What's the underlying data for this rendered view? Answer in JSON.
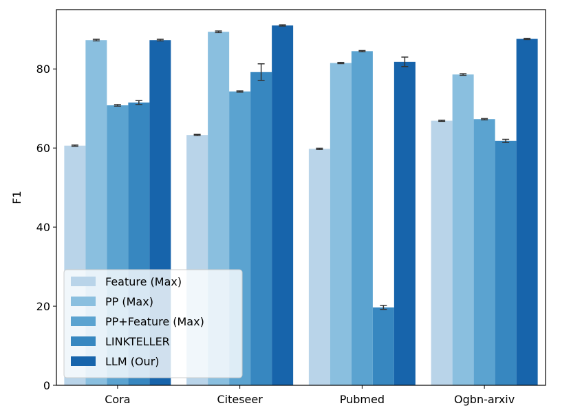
{
  "chart_data": {
    "type": "bar",
    "title": "",
    "xlabel": "",
    "ylabel": "F1",
    "ylim": [
      0,
      95
    ],
    "yticks": [
      0,
      20,
      40,
      60,
      80
    ],
    "categories": [
      "Cora",
      "Citeseer",
      "Pubmed",
      "Ogbn-arxiv"
    ],
    "legend_position": "lower-left",
    "grid": false,
    "series": [
      {
        "name": "Feature (Max)",
        "color": "#b9d4e9",
        "values": [
          60.6,
          63.3,
          59.8,
          66.9
        ],
        "errors": [
          0.15,
          0.15,
          0.15,
          0.15
        ]
      },
      {
        "name": "PP (Max)",
        "color": "#8abfdf",
        "values": [
          87.3,
          89.4,
          81.5,
          78.6
        ],
        "errors": [
          0.2,
          0.2,
          0.15,
          0.2
        ]
      },
      {
        "name": "PP+Feature (Max)",
        "color": "#5ba3d0",
        "values": [
          70.8,
          74.3,
          84.5,
          67.3
        ],
        "errors": [
          0.2,
          0.15,
          0.15,
          0.15
        ]
      },
      {
        "name": "LINKTELLER",
        "color": "#3787c0",
        "values": [
          71.5,
          79.2,
          19.7,
          61.8
        ],
        "errors": [
          0.5,
          2.1,
          0.5,
          0.4
        ]
      },
      {
        "name": "LLM (Our)",
        "color": "#1764ab",
        "values": [
          87.3,
          91.0,
          81.8,
          87.6
        ],
        "errors": [
          0.2,
          0.15,
          1.2,
          0.15
        ]
      }
    ]
  }
}
